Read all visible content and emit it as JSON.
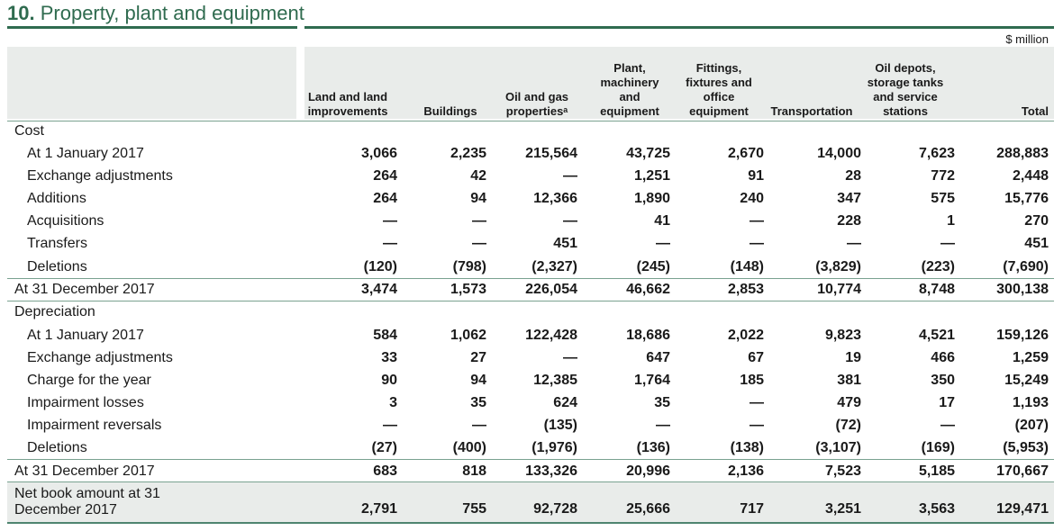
{
  "title": {
    "number": "10.",
    "text": "Property, plant and equipment"
  },
  "unit": "$ million",
  "columns": [
    "Land and land\nimprovements",
    "Buildings",
    "Oil and gas\npropertiesᵃ",
    "Plant,\nmachinery\nand\nequipment",
    "Fittings,\nfixtures and\noffice\nequipment",
    "Transportation",
    "Oil depots,\nstorage tanks\nand service\nstations",
    "Total"
  ],
  "sections": {
    "cost": "Cost",
    "depreciation": "Depreciation"
  },
  "rows": [
    {
      "label": "At 1 January 2017",
      "values": [
        "3,066",
        "2,235",
        "215,564",
        "43,725",
        "2,670",
        "14,000",
        "7,623",
        "288,883"
      ]
    },
    {
      "label": "Exchange adjustments",
      "values": [
        "264",
        "42",
        "—",
        "1,251",
        "91",
        "28",
        "772",
        "2,448"
      ]
    },
    {
      "label": "Additions",
      "values": [
        "264",
        "94",
        "12,366",
        "1,890",
        "240",
        "347",
        "575",
        "15,776"
      ]
    },
    {
      "label": "Acquisitions",
      "values": [
        "—",
        "—",
        "—",
        "41",
        "—",
        "228",
        "1",
        "270"
      ]
    },
    {
      "label": "Transfers",
      "values": [
        "—",
        "—",
        "451",
        "—",
        "—",
        "—",
        "—",
        "451"
      ]
    },
    {
      "label": "Deletions",
      "values": [
        "(120)",
        "(798)",
        "(2,327)",
        "(245)",
        "(148)",
        "(3,829)",
        "(223)",
        "(7,690)"
      ]
    },
    {
      "label": "At 31 December 2017",
      "values": [
        "3,474",
        "1,573",
        "226,054",
        "46,662",
        "2,853",
        "10,774",
        "8,748",
        "300,138"
      ]
    },
    {
      "label": "At 1 January 2017",
      "values": [
        "584",
        "1,062",
        "122,428",
        "18,686",
        "2,022",
        "9,823",
        "4,521",
        "159,126"
      ]
    },
    {
      "label": "Exchange adjustments",
      "values": [
        "33",
        "27",
        "—",
        "647",
        "67",
        "19",
        "466",
        "1,259"
      ]
    },
    {
      "label": "Charge for the year",
      "values": [
        "90",
        "94",
        "12,385",
        "1,764",
        "185",
        "381",
        "350",
        "15,249"
      ]
    },
    {
      "label": "Impairment losses",
      "values": [
        "3",
        "35",
        "624",
        "35",
        "—",
        "479",
        "17",
        "1,193"
      ]
    },
    {
      "label": "Impairment reversals",
      "values": [
        "—",
        "—",
        "(135)",
        "—",
        "—",
        "(72)",
        "—",
        "(207)"
      ]
    },
    {
      "label": "Deletions",
      "values": [
        "(27)",
        "(400)",
        "(1,976)",
        "(136)",
        "(138)",
        "(3,107)",
        "(169)",
        "(5,953)"
      ]
    },
    {
      "label": "At 31 December 2017",
      "values": [
        "683",
        "818",
        "133,326",
        "20,996",
        "2,136",
        "7,523",
        "5,185",
        "170,667"
      ]
    },
    {
      "label": "Net book amount at 31\nDecember 2017",
      "values": [
        "2,791",
        "755",
        "92,728",
        "25,666",
        "717",
        "3,251",
        "3,563",
        "129,471"
      ]
    }
  ]
}
